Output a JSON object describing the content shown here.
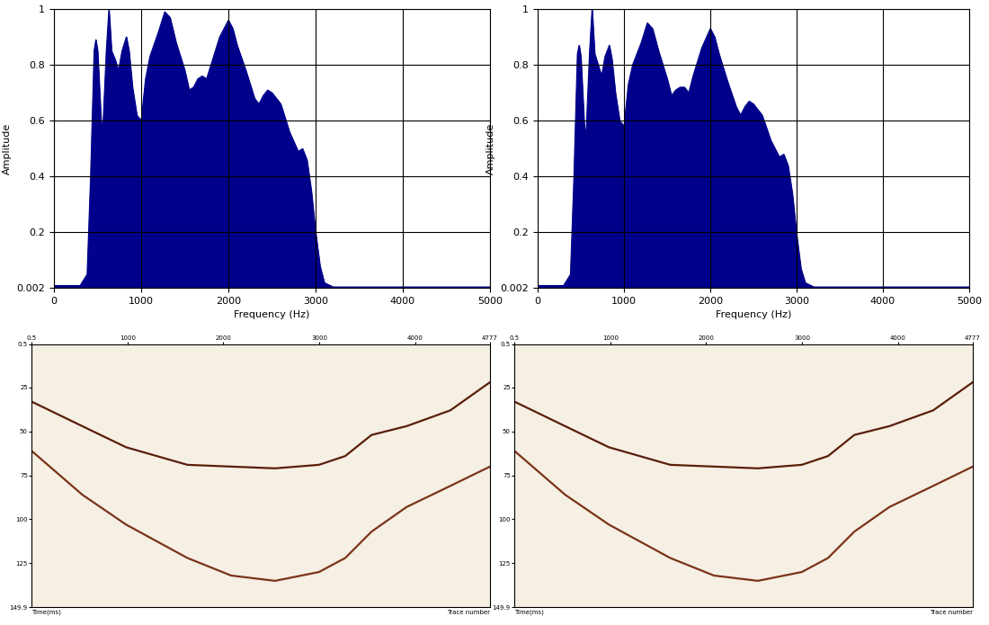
{
  "chart_data": [
    {
      "type": "area",
      "color": "#00008b",
      "grid": true,
      "x_label": "Frequency (Hz)",
      "y_label": "Amplitude",
      "xlim": [
        0,
        5000
      ],
      "xticks": [
        0,
        1000,
        2000,
        3000,
        4000,
        5000
      ],
      "ylim": [
        0.002,
        1
      ],
      "yticks": [
        0.002,
        0.2,
        0.4,
        0.6,
        0.8,
        1
      ],
      "x": [
        0,
        300,
        380,
        420,
        460,
        480,
        500,
        540,
        560,
        600,
        630,
        660,
        700,
        740,
        780,
        830,
        860,
        900,
        950,
        1000,
        1050,
        1100,
        1200,
        1270,
        1330,
        1400,
        1500,
        1550,
        1600,
        1650,
        1700,
        1750,
        1800,
        1900,
        2000,
        2050,
        2100,
        2200,
        2300,
        2350,
        2400,
        2450,
        2500,
        2600,
        2700,
        2800,
        2850,
        2900,
        2950,
        3000,
        3050,
        3100,
        3200,
        5000
      ],
      "values": [
        0.01,
        0.01,
        0.05,
        0.4,
        0.85,
        0.89,
        0.85,
        0.6,
        0.57,
        0.85,
        1.0,
        0.85,
        0.82,
        0.78,
        0.85,
        0.9,
        0.85,
        0.72,
        0.62,
        0.6,
        0.75,
        0.83,
        0.92,
        0.99,
        0.97,
        0.88,
        0.78,
        0.71,
        0.72,
        0.75,
        0.76,
        0.75,
        0.8,
        0.9,
        0.96,
        0.93,
        0.87,
        0.78,
        0.68,
        0.66,
        0.69,
        0.71,
        0.7,
        0.66,
        0.56,
        0.49,
        0.5,
        0.46,
        0.35,
        0.2,
        0.08,
        0.02,
        0.005,
        0.005
      ]
    },
    {
      "type": "area",
      "color": "#00008b",
      "grid": true,
      "x_label": "Frequency (Hz)",
      "y_label": "Amplitude",
      "xlim": [
        0,
        5000
      ],
      "xticks": [
        0,
        1000,
        2000,
        3000,
        4000,
        5000
      ],
      "ylim": [
        0.002,
        1
      ],
      "yticks": [
        0.002,
        0.2,
        0.4,
        0.6,
        0.8,
        1
      ],
      "x": [
        0,
        300,
        380,
        420,
        460,
        480,
        500,
        540,
        560,
        600,
        630,
        660,
        700,
        740,
        780,
        830,
        860,
        900,
        950,
        1000,
        1050,
        1100,
        1200,
        1270,
        1330,
        1400,
        1500,
        1550,
        1600,
        1650,
        1700,
        1750,
        1800,
        1900,
        2000,
        2050,
        2100,
        2200,
        2300,
        2350,
        2400,
        2450,
        2500,
        2600,
        2700,
        2800,
        2850,
        2900,
        2950,
        3000,
        3050,
        3100,
        3200,
        5000
      ],
      "values": [
        0.01,
        0.01,
        0.05,
        0.4,
        0.84,
        0.87,
        0.83,
        0.58,
        0.55,
        0.84,
        1.0,
        0.84,
        0.8,
        0.76,
        0.83,
        0.87,
        0.82,
        0.7,
        0.6,
        0.58,
        0.73,
        0.8,
        0.88,
        0.95,
        0.93,
        0.85,
        0.75,
        0.69,
        0.71,
        0.72,
        0.72,
        0.7,
        0.76,
        0.86,
        0.93,
        0.9,
        0.84,
        0.74,
        0.65,
        0.62,
        0.65,
        0.67,
        0.66,
        0.62,
        0.53,
        0.47,
        0.48,
        0.44,
        0.34,
        0.19,
        0.07,
        0.02,
        0.005,
        0.005
      ]
    },
    {
      "type": "line",
      "grid": false,
      "line_style": "solid",
      "x_label": "Trace number",
      "y_label": "Time(ms)",
      "xlim": [
        0.5,
        4777
      ],
      "xticks": [
        0.5,
        1000,
        2000,
        3000,
        4000,
        4777
      ],
      "ylim": [
        149.9,
        0.5
      ],
      "yticks": [
        0.5,
        25,
        50,
        75,
        100,
        125,
        149.9
      ],
      "x": [
        0.5,
        530,
        986,
        1625,
        2081,
        2538,
        2995,
        3269,
        3543,
        3908,
        4364,
        4777
      ],
      "series": [
        {
          "color": "#5a1e0a",
          "values": [
            33,
            47,
            59,
            69,
            70,
            71,
            69,
            64,
            52,
            47,
            38,
            22
          ]
        },
        {
          "color": "#7a3418",
          "values": [
            61,
            86,
            103,
            122,
            132,
            135,
            130,
            122,
            107,
            93,
            81,
            70
          ]
        }
      ]
    },
    {
      "type": "line",
      "grid": false,
      "line_style": "solid",
      "x_label": "Trace number",
      "y_label": "Time(ms)",
      "xlim": [
        0.5,
        4777
      ],
      "xticks": [
        0.5,
        1000,
        2000,
        3000,
        4000,
        4777
      ],
      "ylim": [
        149.9,
        0.5
      ],
      "yticks": [
        0.5,
        25,
        50,
        75,
        100,
        125,
        149.9
      ],
      "x": [
        0.5,
        530,
        986,
        1625,
        2081,
        2538,
        2995,
        3269,
        3543,
        3908,
        4364,
        4777
      ],
      "series": [
        {
          "color": "#5a1e0a",
          "values": [
            33,
            47,
            59,
            69,
            70,
            71,
            69,
            64,
            52,
            47,
            38,
            22
          ]
        },
        {
          "color": "#7a3418",
          "values": [
            61,
            86,
            103,
            122,
            132,
            135,
            130,
            122,
            107,
            93,
            81,
            70
          ]
        }
      ]
    }
  ]
}
